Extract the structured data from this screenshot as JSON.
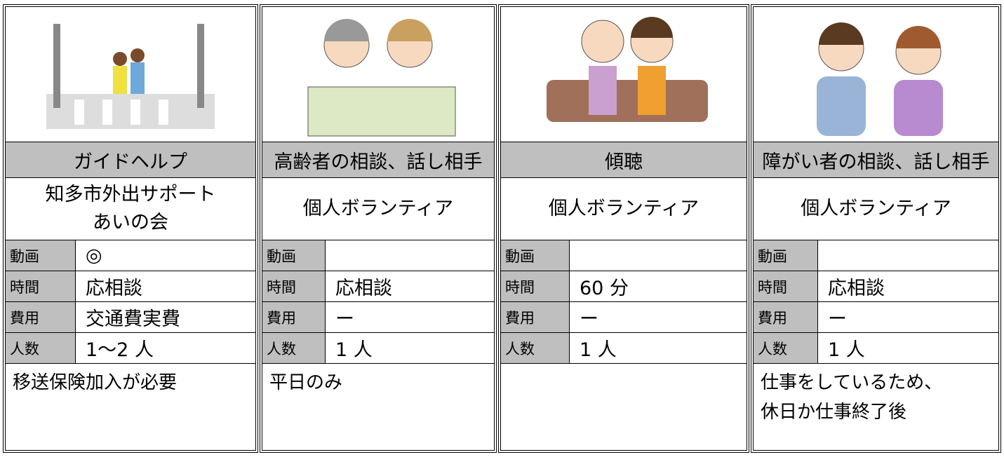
{
  "cards": [
    {
      "title": "ガイドヘルプ",
      "organization": [
        "知多市外出サポート",
        "あいの会"
      ],
      "fields": [
        {
          "key": "動画",
          "value": "◎"
        },
        {
          "key": "時間",
          "value": "応相談"
        },
        {
          "key": "費用",
          "value": "交通費実費"
        },
        {
          "key": "人数",
          "value": "1〜2 人"
        }
      ],
      "note": [
        "移送保険加入が必要"
      ]
    },
    {
      "title": "高齢者の相談、話し相手",
      "organization": [
        "個人ボランティア"
      ],
      "fields": [
        {
          "key": "動画",
          "value": null
        },
        {
          "key": "時間",
          "value": "応相談"
        },
        {
          "key": "費用",
          "value": "ー"
        },
        {
          "key": "人数",
          "value": "1 人"
        }
      ],
      "note": [
        "平日のみ"
      ]
    },
    {
      "title": "傾聴",
      "organization": [
        "個人ボランティア"
      ],
      "fields": [
        {
          "key": "動画",
          "value": null
        },
        {
          "key": "時間",
          "value": "60 分"
        },
        {
          "key": "費用",
          "value": "ー"
        },
        {
          "key": "人数",
          "value": "1 人"
        }
      ],
      "note": null
    },
    {
      "title": "障がい者の相談、話し相手",
      "organization": [
        "個人ボランティア"
      ],
      "fields": [
        {
          "key": "動画",
          "value": null
        },
        {
          "key": "時間",
          "value": "応相談"
        },
        {
          "key": "費用",
          "value": "ー"
        },
        {
          "key": "人数",
          "value": "1 人"
        }
      ],
      "note": [
        "仕事をしているため、",
        "休日か仕事終了後"
      ]
    }
  ]
}
